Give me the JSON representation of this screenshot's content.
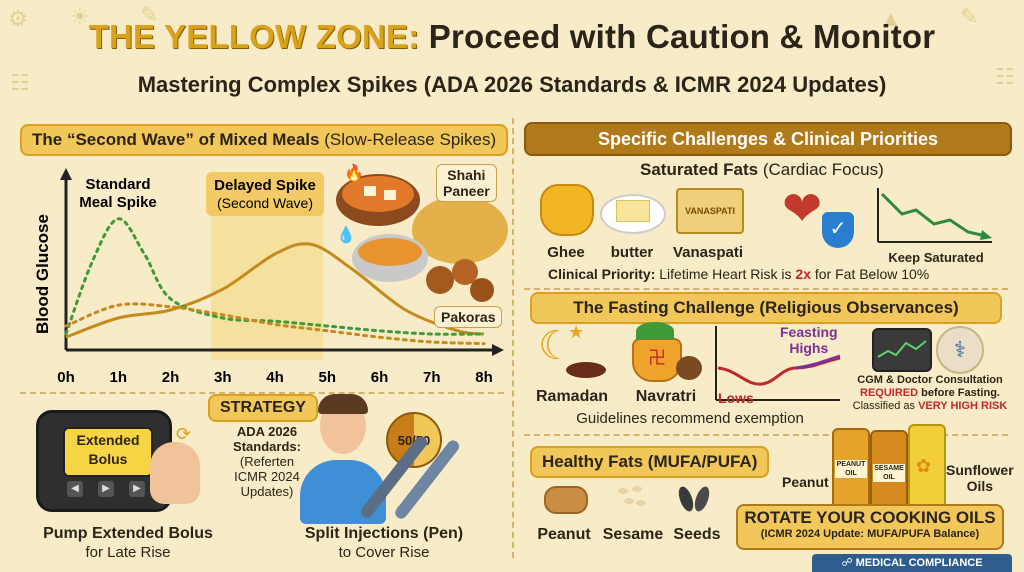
{
  "header": {
    "title_highlight": "THE YELLOW ZONE:",
    "title_rest": " Proceed with Caution & Monitor",
    "subtitle": "Mastering Complex Spikes (ADA 2026 Standards & ICMR 2024 Updates)"
  },
  "left": {
    "banner_bold": "The “Second Wave” of Mixed Meals",
    "banner_light": " (Slow-Release Spikes)",
    "chart_data": {
      "type": "line",
      "ylabel": "Blood Glucose",
      "x_ticks": [
        "0h",
        "1h",
        "2h",
        "3h",
        "4h",
        "5h",
        "6h",
        "7h",
        "8h"
      ],
      "annotations": {
        "standard": "Standard Meal Spike",
        "standard_l1": "Standard",
        "standard_l2": "Meal Spike",
        "delayed_l1": "Delayed Spike",
        "delayed_l2": "(Second Wave)"
      },
      "series": [
        {
          "values": [
            [
              0,
              0.1
            ],
            [
              0.5,
              0.55
            ],
            [
              1,
              0.82
            ],
            [
              1.5,
              0.6
            ],
            [
              2,
              0.32
            ],
            [
              3,
              0.2
            ],
            [
              4,
              0.18
            ],
            [
              5,
              0.15
            ],
            [
              6,
              0.12
            ],
            [
              7,
              0.1
            ],
            [
              8,
              0.1
            ]
          ]
        },
        {
          "values": [
            [
              0,
              0.08
            ],
            [
              1,
              0.2
            ],
            [
              2,
              0.25
            ],
            [
              3,
              0.38
            ],
            [
              4,
              0.6
            ],
            [
              4.7,
              0.66
            ],
            [
              5.5,
              0.5
            ],
            [
              6.5,
              0.25
            ],
            [
              7.5,
              0.12
            ],
            [
              8,
              0.1
            ]
          ]
        },
        {
          "values": [
            [
              0,
              0.15
            ],
            [
              1,
              0.28
            ],
            [
              2,
              0.27
            ],
            [
              3,
              0.22
            ],
            [
              4,
              0.16
            ],
            [
              5,
              0.12
            ],
            [
              6,
              0.08
            ],
            [
              7,
              0.05
            ],
            [
              8,
              0.04
            ]
          ]
        }
      ],
      "colors": {
        "standard": "#3f9a3a",
        "mixed": "#c48a1c",
        "highlight": "#f6d77c"
      }
    },
    "foods": {
      "shahi": "Shahi Paneer",
      "shahi_l1": "Shahi",
      "shahi_l2": "Paneer",
      "pakoras": "Pakoras"
    },
    "strategy": {
      "label": "STRATEGY",
      "ada_l1": "ADA 2026",
      "ada_l2": "Standards:",
      "ada_l3": "(Referten",
      "ada_l4": "ICMR 2024",
      "ada_l5": "Updates)",
      "pump_screen_l1": "Extended",
      "pump_screen_l2": "Bolus",
      "pump_bold": "Pump Extended Bolus",
      "pump_light": "for Late Rise",
      "split_badge": "50/50",
      "split_bold": "Split Injections (Pen)",
      "split_light": "to Cover Rise"
    }
  },
  "right": {
    "banner": "Specific Challenges & Clinical Priorities",
    "sat_bold": "Saturated Fats",
    "sat_light": " (Cardiac Focus)",
    "sat_items": [
      "Ghee",
      "butter",
      "Vanaspati"
    ],
    "vanaspati_pack": "VANASPATI",
    "keep_label": "Keep Saturated",
    "priority_bold": "Clinical Priority:",
    "priority_light": " Lifetime Heart Risk is ",
    "priority_2x": "2x",
    "priority_end": " for Fat Below 10%",
    "fasting_banner": "The Fasting Challenge (Religious Observances)",
    "fasting_items": [
      "Ramadan",
      "Navratri"
    ],
    "feasting_l1": "Feasting",
    "feasting_l2": "Highs",
    "lows": "Lows",
    "guidelines": "Guidelines recommend exemption",
    "cgm_l1": "CGM & Doctor Consultation",
    "cgm_req": "REQUIRED",
    "cgm_l2_end": " before Fasting.",
    "cgm_l3": "Classified as ",
    "cgm_risk": "VERY HIGH RISK",
    "healthy_banner": "Healthy Fats (MUFA/PUFA)",
    "healthy_items": [
      "Peanut",
      "Sesame",
      "Seeds"
    ],
    "oils": {
      "peanut": "Peanut",
      "peanut_bottle_l1": "PEANUT",
      "peanut_bottle_l2": "OIL",
      "sesame_bottle_l1": "SESAME",
      "sesame_bottle_l2": "OIL",
      "sunflower_l1": "Sunflower",
      "sunflower_l2": "Oils"
    },
    "rotate_l1": "ROTATE YOUR COOKING OILS",
    "rotate_l2": "(ICMR 2024 Update: MUFA/PUFA Balance)",
    "footer": "MEDICAL COMPLIANCE"
  },
  "colors": {
    "bg": "#f7ecc7",
    "yellow": "#f2c75a",
    "brown": "#b07a1b",
    "red": "#c0282a"
  }
}
